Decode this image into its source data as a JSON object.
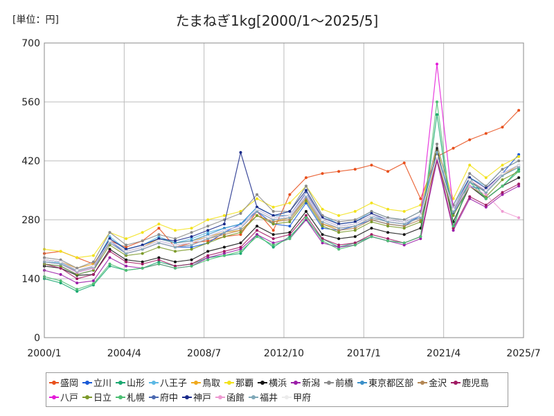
{
  "chart_data": {
    "type": "line",
    "title": "たまねぎ1kg[2000/1～2025/5]",
    "unit_label": "[単位：円]",
    "ylim": [
      0,
      700
    ],
    "y_ticks": [
      "0",
      "140",
      "280",
      "420",
      "560",
      "700"
    ],
    "x_ticks": [
      "2000/1",
      "2004/4",
      "2008/7",
      "2012/10",
      "2017/1",
      "2021/4",
      "2025/7"
    ],
    "grid": true,
    "legend_position": "bottom",
    "series": [
      {
        "name": "盛岡",
        "color": "#e8501c",
        "values": [
          200,
          205,
          190,
          175,
          230,
          215,
          230,
          260,
          215,
          225,
          230,
          240,
          245,
          300,
          255,
          340,
          380,
          390,
          395,
          400,
          410,
          395,
          415,
          330,
          430,
          450,
          470,
          485,
          500,
          540
        ]
      },
      {
        "name": "立川",
        "color": "#1a5ad6",
        "values": [
          175,
          170,
          150,
          160,
          230,
          200,
          210,
          225,
          215,
          215,
          225,
          250,
          270,
          300,
          270,
          265,
          320,
          260,
          255,
          265,
          280,
          270,
          265,
          290,
          420,
          295,
          360,
          350,
          390,
          435
        ]
      },
      {
        "name": "山形",
        "color": "#1aa871",
        "values": [
          140,
          130,
          110,
          125,
          170,
          160,
          165,
          180,
          170,
          175,
          190,
          195,
          200,
          245,
          215,
          240,
          280,
          235,
          215,
          225,
          240,
          230,
          225,
          240,
          530,
          260,
          380,
          330,
          360,
          400
        ]
      },
      {
        "name": "八王子",
        "color": "#5bb8e4",
        "values": [
          180,
          178,
          160,
          170,
          240,
          210,
          220,
          240,
          225,
          235,
          250,
          260,
          270,
          310,
          290,
          300,
          360,
          290,
          270,
          275,
          300,
          285,
          280,
          300,
          440,
          315,
          380,
          360,
          400,
          420
        ]
      },
      {
        "name": "鳥取",
        "color": "#f0a91e",
        "values": [
          185,
          180,
          165,
          175,
          230,
          205,
          215,
          235,
          225,
          230,
          240,
          250,
          255,
          290,
          275,
          285,
          330,
          270,
          260,
          265,
          285,
          275,
          270,
          285,
          420,
          300,
          370,
          345,
          385,
          410
        ]
      },
      {
        "name": "那覇",
        "color": "#f2e21b",
        "values": [
          210,
          205,
          190,
          195,
          250,
          235,
          250,
          270,
          255,
          260,
          280,
          290,
          300,
          330,
          310,
          320,
          360,
          305,
          290,
          300,
          320,
          305,
          300,
          315,
          450,
          330,
          410,
          380,
          410,
          430
        ]
      },
      {
        "name": "横浜",
        "color": "#111111",
        "values": [
          170,
          165,
          148,
          150,
          210,
          185,
          180,
          190,
          180,
          185,
          205,
          215,
          225,
          265,
          245,
          250,
          300,
          245,
          235,
          240,
          260,
          250,
          245,
          260,
          450,
          275,
          360,
          330,
          360,
          380
        ]
      },
      {
        "name": "新潟",
        "color": "#9b1ea8",
        "values": [
          160,
          150,
          130,
          135,
          190,
          170,
          165,
          175,
          165,
          170,
          190,
          200,
          210,
          245,
          225,
          235,
          280,
          225,
          215,
          220,
          240,
          230,
          220,
          235,
          420,
          255,
          330,
          310,
          340,
          360
        ]
      },
      {
        "name": "前橋",
        "color": "#8a8a8a",
        "values": [
          190,
          185,
          165,
          180,
          250,
          220,
          230,
          245,
          235,
          250,
          265,
          280,
          295,
          340,
          300,
          300,
          360,
          290,
          275,
          280,
          300,
          285,
          280,
          300,
          460,
          315,
          390,
          360,
          400,
          420
        ]
      },
      {
        "name": "東京都区部",
        "color": "#3a8fc8",
        "values": [
          185,
          180,
          160,
          170,
          235,
          210,
          220,
          235,
          225,
          230,
          245,
          260,
          270,
          310,
          290,
          290,
          340,
          280,
          265,
          270,
          290,
          275,
          270,
          290,
          430,
          305,
          370,
          350,
          390,
          410
        ]
      },
      {
        "name": "金沢",
        "color": "#b38653",
        "values": [
          180,
          175,
          158,
          168,
          225,
          200,
          210,
          225,
          215,
          220,
          235,
          245,
          255,
          290,
          275,
          280,
          330,
          270,
          255,
          260,
          280,
          270,
          265,
          280,
          440,
          300,
          375,
          345,
          385,
          405
        ]
      },
      {
        "name": "鹿児島",
        "color": "#a01a63",
        "values": [
          175,
          165,
          140,
          150,
          205,
          180,
          175,
          185,
          170,
          175,
          195,
          205,
          215,
          255,
          235,
          245,
          290,
          235,
          220,
          225,
          245,
          235,
          225,
          240,
          430,
          260,
          335,
          315,
          345,
          365
        ]
      },
      {
        "name": "八戸",
        "color": "#e41ad8",
        "values": [
          185,
          180,
          160,
          170,
          230,
          205,
          215,
          230,
          220,
          225,
          240,
          255,
          265,
          305,
          285,
          290,
          340,
          280,
          265,
          270,
          290,
          280,
          275,
          290,
          650,
          305,
          375,
          350,
          390,
          410
        ]
      },
      {
        "name": "日立",
        "color": "#7c9a2a",
        "values": [
          175,
          170,
          150,
          160,
          220,
          195,
          200,
          215,
          205,
          210,
          225,
          240,
          250,
          290,
          270,
          275,
          325,
          265,
          250,
          255,
          275,
          265,
          260,
          275,
          430,
          290,
          360,
          335,
          375,
          395
        ]
      },
      {
        "name": "札幌",
        "color": "#4cbf73",
        "values": [
          145,
          135,
          115,
          128,
          175,
          160,
          165,
          175,
          165,
          170,
          185,
          195,
          205,
          240,
          220,
          235,
          285,
          230,
          210,
          220,
          240,
          230,
          225,
          240,
          560,
          265,
          370,
          330,
          360,
          395
        ]
      },
      {
        "name": "府中",
        "color": "#4a68b0",
        "values": [
          180,
          175,
          155,
          165,
          230,
          205,
          215,
          230,
          220,
          225,
          240,
          255,
          265,
          305,
          285,
          290,
          345,
          280,
          265,
          270,
          290,
          280,
          275,
          290,
          430,
          300,
          370,
          345,
          385,
          405
        ]
      },
      {
        "name": "神戸",
        "color": "#1a2a8a",
        "values": [
          185,
          180,
          160,
          170,
          235,
          210,
          220,
          235,
          230,
          240,
          255,
          270,
          440,
          310,
          290,
          300,
          350,
          285,
          270,
          275,
          295,
          280,
          275,
          290,
          440,
          305,
          380,
          355,
          390,
          410
        ]
      },
      {
        "name": "函館",
        "color": "#ee9ad2",
        "values": [
          180,
          175,
          155,
          165,
          225,
          200,
          210,
          225,
          215,
          220,
          235,
          250,
          260,
          300,
          280,
          285,
          335,
          275,
          260,
          265,
          285,
          275,
          270,
          285,
          430,
          300,
          360,
          340,
          300,
          285
        ]
      },
      {
        "name": "福井",
        "color": "#7fa8b8",
        "values": [
          180,
          175,
          158,
          168,
          225,
          200,
          210,
          225,
          215,
          220,
          235,
          250,
          260,
          300,
          280,
          285,
          335,
          275,
          260,
          265,
          285,
          275,
          270,
          285,
          440,
          300,
          370,
          345,
          385,
          405
        ]
      },
      {
        "name": "甲府",
        "color": "#ececec",
        "values": [
          185,
          180,
          160,
          170,
          230,
          205,
          215,
          230,
          220,
          225,
          240,
          255,
          265,
          305,
          285,
          290,
          340,
          280,
          265,
          270,
          290,
          280,
          275,
          290,
          430,
          305,
          375,
          350,
          390,
          410
        ]
      }
    ]
  }
}
